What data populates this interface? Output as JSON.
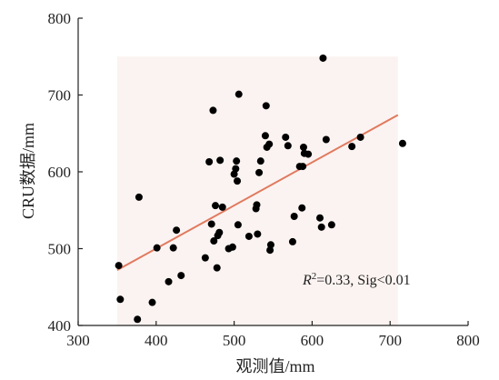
{
  "chart_data": {
    "type": "scatter",
    "xlabel": "观测值/mm",
    "ylabel": "CRU数据/mm",
    "xlim": [
      300,
      800
    ],
    "ylim": [
      400,
      800
    ],
    "xticks": [
      "300",
      "400",
      "500",
      "600",
      "700",
      "800"
    ],
    "yticks": [
      "400",
      "500",
      "600",
      "700",
      "800"
    ],
    "grid": false,
    "shaded_region": {
      "x": [
        350,
        710
      ],
      "y": [
        400,
        750
      ]
    },
    "annotation": {
      "r_symbol": "R",
      "r_power": "2",
      "text": "=0.33, Sig<0.01"
    },
    "trendline": {
      "x": [
        350,
        710
      ],
      "y": [
        472,
        674
      ],
      "color": "#e07a5f"
    },
    "points_color": "#000000",
    "points": [
      [
        352,
        478
      ],
      [
        354,
        434
      ],
      [
        376,
        408
      ],
      [
        378,
        567
      ],
      [
        395,
        430
      ],
      [
        401,
        501
      ],
      [
        416,
        457
      ],
      [
        422,
        501
      ],
      [
        426,
        524
      ],
      [
        432,
        465
      ],
      [
        463,
        488
      ],
      [
        468,
        613
      ],
      [
        471,
        532
      ],
      [
        473,
        680
      ],
      [
        474,
        510
      ],
      [
        476,
        556
      ],
      [
        478,
        475
      ],
      [
        479,
        517
      ],
      [
        481,
        521
      ],
      [
        482,
        615
      ],
      [
        485,
        554
      ],
      [
        493,
        500
      ],
      [
        498,
        502
      ],
      [
        500,
        597
      ],
      [
        502,
        604
      ],
      [
        503,
        614
      ],
      [
        504,
        588
      ],
      [
        505,
        531
      ],
      [
        506,
        701
      ],
      [
        519,
        516
      ],
      [
        528,
        552
      ],
      [
        529,
        557
      ],
      [
        530,
        519
      ],
      [
        532,
        599
      ],
      [
        534,
        614
      ],
      [
        540,
        647
      ],
      [
        541,
        686
      ],
      [
        542,
        632
      ],
      [
        545,
        636
      ],
      [
        546,
        498
      ],
      [
        547,
        505
      ],
      [
        566,
        645
      ],
      [
        569,
        634
      ],
      [
        575,
        509
      ],
      [
        577,
        542
      ],
      [
        584,
        607
      ],
      [
        587,
        553
      ],
      [
        588,
        607
      ],
      [
        589,
        632
      ],
      [
        590,
        624
      ],
      [
        595,
        623
      ],
      [
        610,
        540
      ],
      [
        612,
        528
      ],
      [
        614,
        748
      ],
      [
        618,
        642
      ],
      [
        625,
        531
      ],
      [
        651,
        633
      ],
      [
        662,
        645
      ],
      [
        716,
        637
      ]
    ]
  }
}
